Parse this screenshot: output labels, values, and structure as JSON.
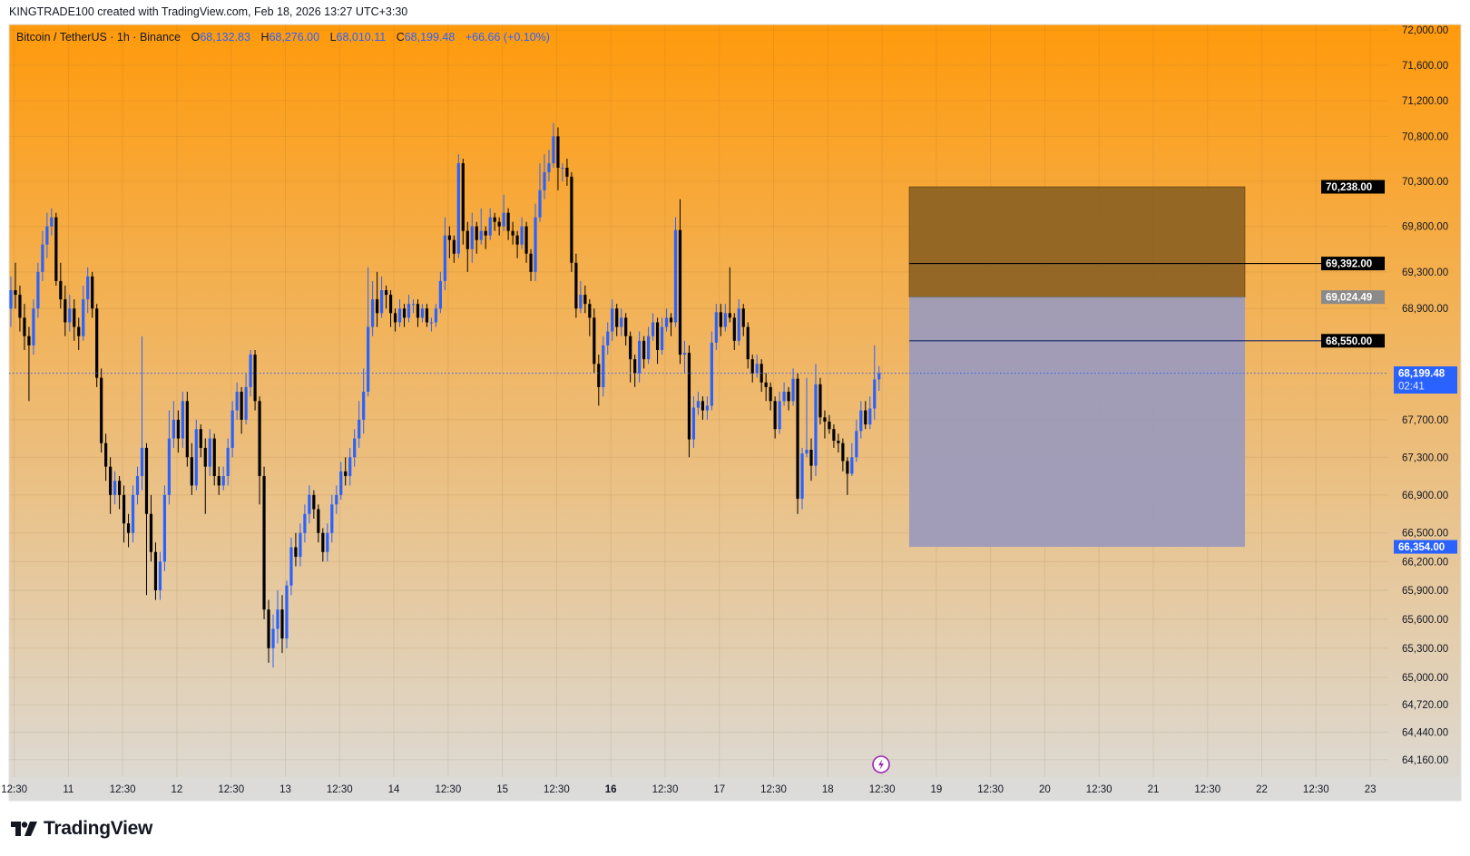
{
  "header": {
    "attribution": "KINGTRADE100 created with TradingView.com, Feb 18, 2026 13:27 UTC+3:30"
  },
  "legend": {
    "symbol": "Bitcoin / TetherUS · 1h · Binance",
    "open_label": "O",
    "open": "68,132.83",
    "high_label": "H",
    "high": "68,276.00",
    "low_label": "L",
    "low": "68,010.11",
    "close_label": "C",
    "close": "68,199.48",
    "change": "+66.66 (+0.10%)"
  },
  "logo": {
    "text": "TradingView"
  },
  "colors": {
    "up": "#2962ff",
    "down": "#000000",
    "bg_top": "#ff9a0c",
    "bg_bottom": "#dcdbd8",
    "target_zone": "#8e6324",
    "stop_zone": "#9d9bbb",
    "current_price": "#2962ff",
    "marker": "#9c27b0"
  },
  "chart_data": {
    "type": "candlestick",
    "interval": "1h",
    "y_scale": "log",
    "grid": true,
    "ylim": [
      64000,
      72150
    ],
    "price_ticks": [
      "72,000.00",
      "71,600.00",
      "71,200.00",
      "70,800.00",
      "70,300.00",
      "69,800.00",
      "69,300.00",
      "68,900.00",
      "67,700.00",
      "67,300.00",
      "66,900.00",
      "66,500.00",
      "66,200.00",
      "65,900.00",
      "65,600.00",
      "65,300.00",
      "65,000.00",
      "64,720.00",
      "64,440.00",
      "64,160.00"
    ],
    "time_ticks": [
      "12:30",
      "11",
      "12:30",
      "12",
      "12:30",
      "13",
      "12:30",
      "14",
      "12:30",
      "15",
      "12:30",
      "16",
      "12:30",
      "17",
      "12:30",
      "18",
      "12:30",
      "19",
      "12:30",
      "20",
      "12:30",
      "21",
      "12:30",
      "22",
      "12:30",
      "23"
    ],
    "candles_ohlc": [
      [
        68900,
        69250,
        68700,
        69100
      ],
      [
        69100,
        69400,
        68900,
        69050
      ],
      [
        69050,
        69150,
        68650,
        68800
      ],
      [
        68800,
        68950,
        68450,
        68600
      ],
      [
        68600,
        68700,
        67900,
        68500
      ],
      [
        68500,
        69000,
        68400,
        68900
      ],
      [
        68900,
        69400,
        68800,
        69300
      ],
      [
        69300,
        69750,
        69200,
        69600
      ],
      [
        69600,
        69950,
        69450,
        69800
      ],
      [
        69800,
        70000,
        69700,
        69900
      ],
      [
        69900,
        69950,
        69150,
        69200
      ],
      [
        69200,
        69400,
        68900,
        69000
      ],
      [
        69000,
        69150,
        68600,
        68750
      ],
      [
        68750,
        69050,
        68650,
        68900
      ],
      [
        68900,
        69000,
        68550,
        68700
      ],
      [
        68700,
        68800,
        68450,
        68600
      ],
      [
        68600,
        69150,
        68550,
        69000
      ],
      [
        69000,
        69350,
        68850,
        69250
      ],
      [
        69250,
        69300,
        68800,
        68900
      ],
      [
        68900,
        68950,
        68050,
        68150
      ],
      [
        68150,
        68250,
        67350,
        67450
      ],
      [
        67450,
        67550,
        67050,
        67200
      ],
      [
        67200,
        67300,
        66700,
        66900
      ],
      [
        66900,
        67150,
        66800,
        67050
      ],
      [
        67050,
        67100,
        66750,
        66900
      ],
      [
        66900,
        67000,
        66400,
        66600
      ],
      [
        66600,
        66700,
        66350,
        66500
      ],
      [
        66500,
        67000,
        66400,
        66900
      ],
      [
        66900,
        67200,
        66800,
        67100
      ],
      [
        67100,
        68600,
        66950,
        67400
      ],
      [
        67400,
        67450,
        65850,
        66700
      ],
      [
        66700,
        66900,
        66200,
        66300
      ],
      [
        66300,
        66400,
        65800,
        65900
      ],
      [
        65900,
        66300,
        65800,
        66200
      ],
      [
        66200,
        67000,
        66100,
        66900
      ],
      [
        66900,
        67800,
        66800,
        67500
      ],
      [
        67500,
        67900,
        67400,
        67700
      ],
      [
        67700,
        67800,
        67350,
        67500
      ],
      [
        67500,
        68000,
        67400,
        67900
      ],
      [
        67900,
        68000,
        67200,
        67300
      ],
      [
        67300,
        67450,
        66900,
        67000
      ],
      [
        67000,
        67700,
        66950,
        67600
      ],
      [
        67600,
        67650,
        67300,
        67400
      ],
      [
        67400,
        67500,
        66700,
        67200
      ],
      [
        67200,
        67600,
        67100,
        67500
      ],
      [
        67500,
        67550,
        67000,
        67100
      ],
      [
        67100,
        67200,
        66900,
        67000
      ],
      [
        67000,
        67200,
        66950,
        67100
      ],
      [
        67100,
        67500,
        67000,
        67400
      ],
      [
        67400,
        67900,
        67300,
        67800
      ],
      [
        67800,
        68100,
        67700,
        68000
      ],
      [
        68000,
        68050,
        67550,
        67700
      ],
      [
        67700,
        68200,
        67650,
        68050
      ],
      [
        68050,
        68450,
        67950,
        68400
      ],
      [
        68400,
        68450,
        67800,
        67900
      ],
      [
        67900,
        67950,
        66800,
        67100
      ],
      [
        67100,
        67200,
        65600,
        65700
      ],
      [
        65700,
        65800,
        65150,
        65300
      ],
      [
        65300,
        65650,
        65100,
        65500
      ],
      [
        65500,
        65900,
        65350,
        65700
      ],
      [
        65700,
        65850,
        65250,
        65400
      ],
      [
        65400,
        66000,
        65300,
        65950
      ],
      [
        65950,
        66450,
        65850,
        66350
      ],
      [
        66350,
        66500,
        66150,
        66250
      ],
      [
        66250,
        66600,
        66150,
        66500
      ],
      [
        66500,
        66800,
        66400,
        66700
      ],
      [
        66700,
        67000,
        66600,
        66900
      ],
      [
        66900,
        66950,
        66650,
        66750
      ],
      [
        66750,
        66800,
        66400,
        66500
      ],
      [
        66500,
        66550,
        66200,
        66300
      ],
      [
        66300,
        66600,
        66200,
        66500
      ],
      [
        66500,
        66900,
        66400,
        66800
      ],
      [
        66800,
        67000,
        66700,
        66900
      ],
      [
        66900,
        67250,
        66850,
        67150
      ],
      [
        67150,
        67300,
        67000,
        67100
      ],
      [
        67100,
        67400,
        67000,
        67300
      ],
      [
        67300,
        67600,
        67200,
        67500
      ],
      [
        67500,
        67900,
        67400,
        67700
      ],
      [
        67700,
        68250,
        67550,
        68000
      ],
      [
        68000,
        69350,
        67950,
        68700
      ],
      [
        68700,
        69200,
        68600,
        69000
      ],
      [
        69000,
        69300,
        68700,
        68850
      ],
      [
        68850,
        69250,
        68800,
        69100
      ],
      [
        69100,
        69150,
        68900,
        69050
      ],
      [
        69050,
        69100,
        68700,
        68850
      ],
      [
        68850,
        68900,
        68650,
        68750
      ],
      [
        68750,
        69000,
        68700,
        68900
      ],
      [
        68900,
        68950,
        68700,
        68800
      ],
      [
        68800,
        69050,
        68750,
        68950
      ],
      [
        68950,
        69000,
        68850,
        68950
      ],
      [
        68950,
        69000,
        68700,
        68800
      ],
      [
        68800,
        68950,
        68750,
        68900
      ],
      [
        68900,
        68950,
        68700,
        68750
      ],
      [
        68750,
        68800,
        68650,
        68750
      ],
      [
        68750,
        68950,
        68700,
        68900
      ],
      [
        68900,
        69300,
        68850,
        69200
      ],
      [
        69200,
        69900,
        69100,
        69700
      ],
      [
        69700,
        69800,
        69450,
        69650
      ],
      [
        69650,
        69700,
        69400,
        69500
      ],
      [
        69500,
        70600,
        69450,
        70500
      ],
      [
        70500,
        70550,
        69600,
        69750
      ],
      [
        69750,
        69850,
        69300,
        69550
      ],
      [
        69550,
        69950,
        69400,
        69800
      ],
      [
        69800,
        69850,
        69500,
        69650
      ],
      [
        69650,
        70000,
        69600,
        69750
      ],
      [
        69750,
        69800,
        69550,
        69700
      ],
      [
        69700,
        70000,
        69650,
        69900
      ],
      [
        69900,
        69950,
        69750,
        69850
      ],
      [
        69850,
        69900,
        69700,
        69800
      ],
      [
        69800,
        70150,
        69750,
        69950
      ],
      [
        69950,
        70000,
        69650,
        69750
      ],
      [
        69750,
        69850,
        69600,
        69700
      ],
      [
        69700,
        69750,
        69450,
        69600
      ],
      [
        69600,
        69900,
        69550,
        69800
      ],
      [
        69800,
        69850,
        69400,
        69500
      ],
      [
        69500,
        69550,
        69200,
        69300
      ],
      [
        69300,
        70050,
        69200,
        69900
      ],
      [
        69900,
        70500,
        69850,
        70200
      ],
      [
        70200,
        70600,
        70100,
        70400
      ],
      [
        70400,
        70650,
        70300,
        70500
      ],
      [
        70500,
        70950,
        70450,
        70800
      ],
      [
        70800,
        70900,
        70200,
        70450
      ],
      [
        70450,
        70500,
        70300,
        70450
      ],
      [
        70450,
        70550,
        70250,
        70350
      ],
      [
        70350,
        70400,
        69300,
        69400
      ],
      [
        69400,
        69500,
        68800,
        68900
      ],
      [
        68900,
        69200,
        68850,
        69050
      ],
      [
        69050,
        69150,
        68850,
        68950
      ],
      [
        68950,
        69000,
        68600,
        68800
      ],
      [
        68800,
        68900,
        68200,
        68300
      ],
      [
        68300,
        68400,
        67850,
        68050
      ],
      [
        68050,
        68600,
        67950,
        68500
      ],
      [
        68500,
        68750,
        68400,
        68650
      ],
      [
        68650,
        69000,
        68550,
        68900
      ],
      [
        68900,
        68950,
        68600,
        68700
      ],
      [
        68700,
        68900,
        68600,
        68800
      ],
      [
        68800,
        68850,
        68500,
        68600
      ],
      [
        68600,
        68650,
        68100,
        68350
      ],
      [
        68350,
        68400,
        68050,
        68200
      ],
      [
        68200,
        68650,
        68100,
        68550
      ],
      [
        68550,
        68600,
        68250,
        68350
      ],
      [
        68350,
        68700,
        68300,
        68600
      ],
      [
        68600,
        68850,
        68550,
        68750
      ],
      [
        68750,
        68800,
        68300,
        68450
      ],
      [
        68450,
        68800,
        68400,
        68700
      ],
      [
        68700,
        68900,
        68650,
        68800
      ],
      [
        68800,
        68850,
        68600,
        68750
      ],
      [
        68750,
        69900,
        68700,
        69760
      ],
      [
        69760,
        70100,
        68300,
        68400
      ],
      [
        68400,
        68550,
        68200,
        68420
      ],
      [
        68420,
        68500,
        67300,
        67490
      ],
      [
        67490,
        67950,
        67400,
        67830
      ],
      [
        67830,
        68000,
        67750,
        67900
      ],
      [
        67900,
        67950,
        67700,
        67800
      ],
      [
        67800,
        67950,
        67700,
        67850
      ],
      [
        67850,
        68650,
        67800,
        68530
      ],
      [
        68530,
        68950,
        68450,
        68860
      ],
      [
        68860,
        68950,
        68600,
        68700
      ],
      [
        68700,
        68950,
        68650,
        68850
      ],
      [
        68850,
        69350,
        68750,
        68800
      ],
      [
        68800,
        68850,
        68450,
        68550
      ],
      [
        68550,
        69000,
        68500,
        68900
      ],
      [
        68900,
        68950,
        68600,
        68700
      ],
      [
        68700,
        68750,
        68250,
        68350
      ],
      [
        68350,
        68400,
        68100,
        68200
      ],
      [
        68200,
        68400,
        68150,
        68300
      ],
      [
        68300,
        68350,
        68000,
        68100
      ],
      [
        68100,
        68200,
        67900,
        68050
      ],
      [
        68050,
        68100,
        67800,
        67900
      ],
      [
        67900,
        67950,
        67500,
        67600
      ],
      [
        67600,
        68000,
        67550,
        67900
      ],
      [
        67900,
        68100,
        67850,
        68000
      ],
      [
        68000,
        68050,
        67800,
        67900
      ],
      [
        67900,
        68250,
        67850,
        68140
      ],
      [
        68140,
        68200,
        66700,
        66860
      ],
      [
        66860,
        67400,
        66750,
        67340
      ],
      [
        67340,
        68150,
        67300,
        67380
      ],
      [
        67380,
        67500,
        67050,
        67210
      ],
      [
        67210,
        68300,
        67100,
        68080
      ],
      [
        68080,
        68150,
        67650,
        67725
      ],
      [
        67725,
        67800,
        67500,
        67680
      ],
      [
        67680,
        67750,
        67550,
        67600
      ],
      [
        67600,
        67650,
        67400,
        67476
      ],
      [
        67476,
        67550,
        67350,
        67450
      ],
      [
        67450,
        67500,
        67150,
        67260
      ],
      [
        67260,
        67300,
        66900,
        67125
      ],
      [
        67125,
        67450,
        67100,
        67300
      ],
      [
        67300,
        67700,
        67250,
        67580
      ],
      [
        67580,
        67900,
        67500,
        67800
      ],
      [
        67800,
        67900,
        67600,
        67650
      ],
      [
        67650,
        67950,
        67600,
        67820
      ],
      [
        67820,
        68500,
        67700,
        68132.83
      ],
      [
        68132.83,
        68276,
        68010.11,
        68199.48
      ]
    ],
    "position_tool": {
      "upper_price": 70238.0,
      "upper_label": "70,238.00",
      "entry_price": 69024.49,
      "entry_label": "69,024.49",
      "lower_price": 66354.0,
      "lower_label": "66,354.00"
    },
    "horizontal_lines": [
      {
        "price": 69392.0,
        "label": "69,392.00",
        "color": "#000000"
      },
      {
        "price": 68550.0,
        "label": "68,550.00",
        "color": "#1a2a6c"
      }
    ],
    "current_price": {
      "price": 68199.48,
      "label": "68,199.48",
      "countdown": "02:41"
    }
  }
}
